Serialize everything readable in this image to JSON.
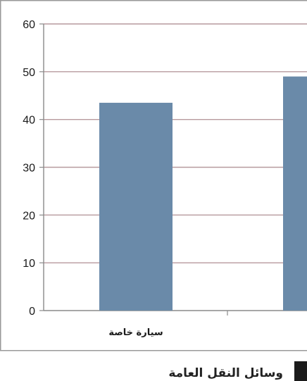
{
  "chart_data": {
    "type": "bar",
    "categories": [
      "سيارة خاصة",
      ""
    ],
    "values": [
      43.5,
      49
    ],
    "ylim": [
      0,
      60
    ],
    "yticks": [
      0,
      10,
      20,
      30,
      40,
      50,
      60
    ],
    "grid": true,
    "bar_color": "#6a8aa9",
    "grid_color": "#b79a9e"
  },
  "caption": "وسائل النقل العامة"
}
